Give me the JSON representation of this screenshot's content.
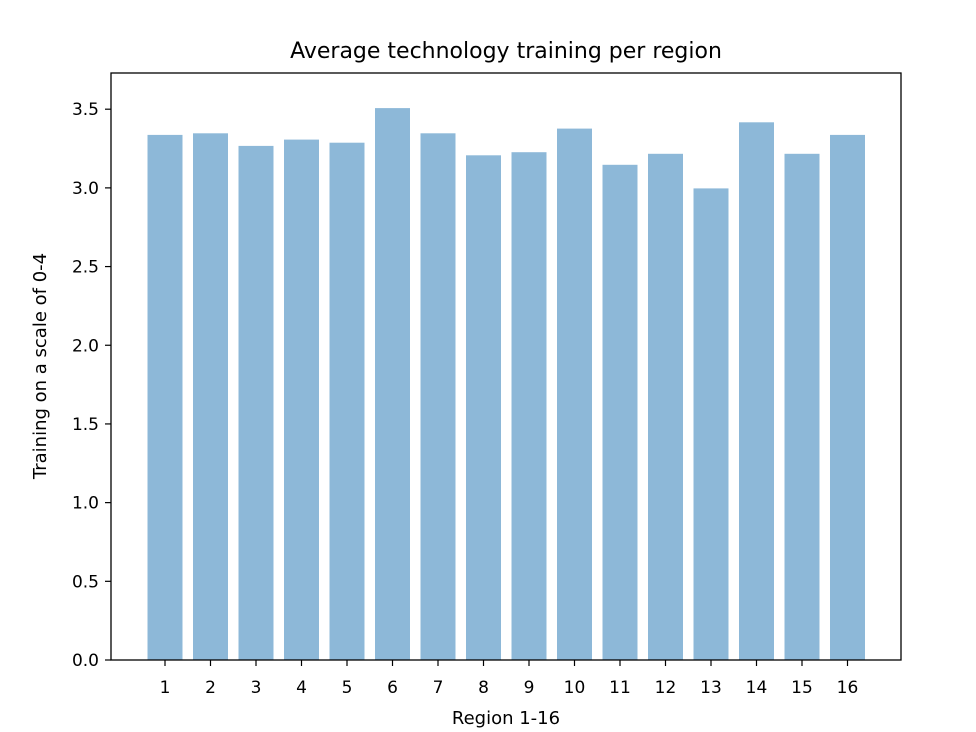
{
  "chart_data": {
    "type": "bar",
    "title": "Average technology training per region",
    "xlabel": "Region 1-16",
    "ylabel": "Training on a scale of 0-4",
    "categories": [
      "1",
      "2",
      "3",
      "4",
      "5",
      "6",
      "7",
      "8",
      "9",
      "10",
      "11",
      "12",
      "13",
      "14",
      "15",
      "16"
    ],
    "values": [
      3.34,
      3.35,
      3.27,
      3.31,
      3.29,
      3.51,
      3.35,
      3.21,
      3.23,
      3.38,
      3.15,
      3.22,
      3.0,
      3.42,
      3.22,
      3.34
    ],
    "ylim": [
      0,
      3.73
    ],
    "yticks": [
      "0.0",
      "0.5",
      "1.0",
      "1.5",
      "2.0",
      "2.5",
      "3.0",
      "3.5"
    ],
    "bar_color": "#8db8d8",
    "grid": false,
    "legend": "none"
  }
}
